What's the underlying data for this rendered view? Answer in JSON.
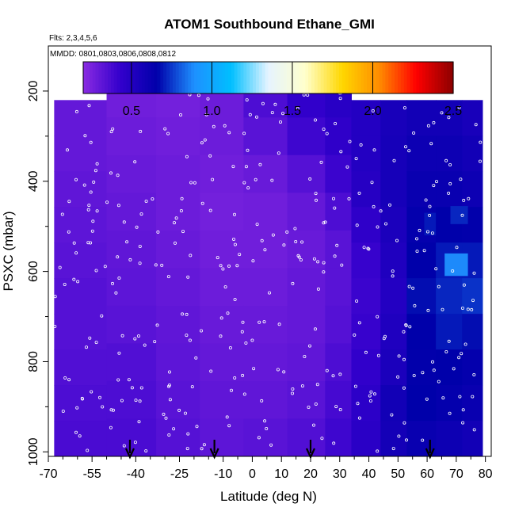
{
  "chart_data": {
    "type": "heatmap",
    "title": "ATOM1 Southbound Ethane_GMI",
    "flights_label": "Flts: 2,3,4,5,6",
    "dates_label": "MMDD: 0801,0803,0806,0808,0812",
    "xlabel": "Latitude (deg N)",
    "ylabel": "PSXC (mbar)",
    "xlim": [
      -70,
      82
    ],
    "ylim": [
      1010,
      100
    ],
    "y_inverted": true,
    "x_ticks": [
      -70,
      -55,
      -40,
      -25,
      -10,
      0,
      10,
      20,
      30,
      40,
      50,
      60,
      70,
      80
    ],
    "x_tick_labels": [
      "-70",
      "-55",
      "-40",
      "-25",
      "-10",
      "0",
      "10",
      "20",
      "30",
      "40",
      "50",
      "60",
      "70",
      "80"
    ],
    "y_ticks": [
      200,
      400,
      600,
      800,
      1000
    ],
    "y_tick_labels": [
      "200",
      "400",
      "600",
      "800",
      "1000"
    ],
    "colorbar": {
      "min": 0.2,
      "max": 2.5,
      "ticks": [
        0.5,
        1.0,
        1.5,
        2.0,
        2.5
      ],
      "tick_labels": [
        "0.5",
        "1.0",
        "1.5",
        "2.0",
        "2.5"
      ],
      "colors": [
        "#8a2be2",
        "#3300cc",
        "#0000aa",
        "#1e90ff",
        "#00bfff",
        "#e6f4ff",
        "#ffffcc",
        "#ffd700",
        "#ff8c00",
        "#ff0000",
        "#8b0000"
      ]
    },
    "columns": [
      {
        "lat0": -68,
        "lat1": -50,
        "p_top": 220,
        "v": [
          0.3,
          0.3,
          0.31,
          0.32,
          0.33,
          0.34,
          0.34,
          0.35,
          0.36,
          0.37
        ]
      },
      {
        "lat0": -50,
        "lat1": -33,
        "p_top": 175,
        "v": [
          0.27,
          0.28,
          0.29,
          0.3,
          0.31,
          0.32,
          0.33,
          0.35,
          0.36,
          0.37
        ]
      },
      {
        "lat0": -33,
        "lat1": -18,
        "p_top": 175,
        "v": [
          0.26,
          0.27,
          0.28,
          0.28,
          0.29,
          0.3,
          0.31,
          0.32,
          0.33,
          0.34
        ]
      },
      {
        "lat0": -18,
        "lat1": -3,
        "p_top": 175,
        "v": [
          0.28,
          0.28,
          0.27,
          0.26,
          0.27,
          0.28,
          0.29,
          0.3,
          0.31,
          0.32
        ]
      },
      {
        "lat0": -3,
        "lat1": 12,
        "p_top": 175,
        "v": [
          0.36,
          0.33,
          0.29,
          0.27,
          0.27,
          0.28,
          0.29,
          0.3,
          0.31,
          0.33
        ]
      },
      {
        "lat0": 12,
        "lat1": 25,
        "p_top": 175,
        "v": [
          0.44,
          0.4,
          0.34,
          0.3,
          0.29,
          0.3,
          0.3,
          0.31,
          0.33,
          0.35
        ]
      },
      {
        "lat0": 25,
        "lat1": 34,
        "p_top": 175,
        "v": [
          0.48,
          0.45,
          0.41,
          0.36,
          0.33,
          0.33,
          0.34,
          0.36,
          0.38,
          0.4
        ]
      },
      {
        "lat0": 34,
        "lat1": 44,
        "p_top": 220,
        "v": [
          0.5,
          0.5,
          0.49,
          0.45,
          0.42,
          0.41,
          0.42,
          0.44,
          0.46,
          0.47
        ]
      },
      {
        "lat0": 44,
        "lat1": 53,
        "p_top": 220,
        "v": [
          0.55,
          0.56,
          0.56,
          0.54,
          0.52,
          0.5,
          0.52,
          0.54,
          0.58,
          0.57
        ]
      },
      {
        "lat0": 53,
        "lat1": 63,
        "p_top": 220,
        "v": [
          0.58,
          0.6,
          0.62,
          0.64,
          0.66,
          0.68,
          0.66,
          0.65,
          0.66,
          0.62
        ]
      },
      {
        "lat0": 63,
        "lat1": 72,
        "p_top": 220,
        "v": [
          0.58,
          0.6,
          0.62,
          0.66,
          0.7,
          0.72,
          0.7,
          0.66,
          0.64,
          0.6
        ]
      },
      {
        "lat0": 72,
        "lat1": 79,
        "p_top": 220,
        "v": [
          0.55,
          0.58,
          0.6,
          0.65,
          0.7,
          0.74,
          0.68,
          0.64,
          0.62,
          0.58
        ]
      }
    ],
    "patches": [
      {
        "lat0": 66,
        "lat1": 74,
        "p0": 560,
        "p1": 610,
        "v": 0.88
      },
      {
        "lat0": 59,
        "lat1": 63,
        "p0": 470,
        "p1": 520,
        "v": 0.7
      },
      {
        "lat0": 68,
        "lat1": 74,
        "p0": 455,
        "p1": 495,
        "v": 0.72
      }
    ],
    "profile_arrows_lat": [
      -42,
      -13,
      20,
      61
    ]
  }
}
